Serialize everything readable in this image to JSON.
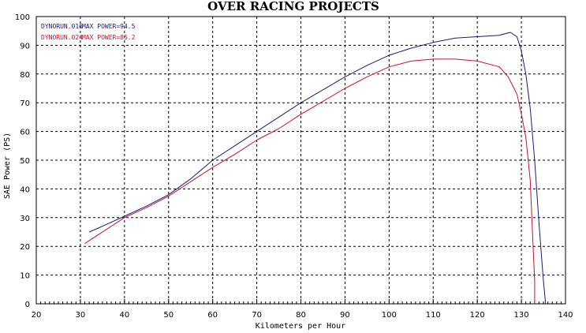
{
  "chart_data": {
    "type": "line",
    "title": "OVER RACING PROJECTS",
    "xlabel": "Kilometers per Hour",
    "ylabel": "SAE Power (PS)",
    "xlim": [
      20,
      140
    ],
    "ylim": [
      0,
      100
    ],
    "x_ticks": [
      20,
      30,
      40,
      50,
      60,
      70,
      80,
      90,
      100,
      110,
      120,
      130,
      140
    ],
    "y_ticks": [
      0,
      10,
      20,
      30,
      40,
      50,
      60,
      70,
      80,
      90,
      100
    ],
    "grid": true,
    "legend_position": "top-left",
    "series": [
      {
        "name": "DYNORUN.016",
        "annotation": "MAX POWER=94.5",
        "color": "#1a1a7a",
        "points": [
          [
            32,
            25
          ],
          [
            35,
            27
          ],
          [
            40,
            30.5
          ],
          [
            45,
            34
          ],
          [
            50,
            38
          ],
          [
            55,
            43.5
          ],
          [
            60,
            50
          ],
          [
            65,
            55
          ],
          [
            70,
            60
          ],
          [
            75,
            65
          ],
          [
            80,
            70
          ],
          [
            85,
            74.5
          ],
          [
            90,
            79
          ],
          [
            95,
            83
          ],
          [
            100,
            86.5
          ],
          [
            105,
            89
          ],
          [
            110,
            91
          ],
          [
            115,
            92.5
          ],
          [
            120,
            93
          ],
          [
            125,
            93.5
          ],
          [
            127.5,
            94.5
          ],
          [
            129,
            93
          ],
          [
            130,
            88
          ],
          [
            131,
            80
          ],
          [
            132,
            68
          ],
          [
            133,
            50
          ],
          [
            134,
            28
          ],
          [
            135,
            8
          ],
          [
            135.5,
            0
          ]
        ]
      },
      {
        "name": "DYNORUN.024",
        "annotation": "MAX POWER=85.2",
        "color": "#c8102e",
        "points": [
          [
            31,
            21
          ],
          [
            35,
            25
          ],
          [
            40,
            30
          ],
          [
            45,
            33.5
          ],
          [
            50,
            37.5
          ],
          [
            55,
            42.5
          ],
          [
            60,
            47.5
          ],
          [
            65,
            52
          ],
          [
            70,
            57
          ],
          [
            75,
            61
          ],
          [
            80,
            66
          ],
          [
            85,
            70.5
          ],
          [
            90,
            75
          ],
          [
            95,
            79
          ],
          [
            100,
            82.5
          ],
          [
            105,
            84.5
          ],
          [
            110,
            85.2
          ],
          [
            115,
            85.2
          ],
          [
            120,
            84.5
          ],
          [
            125,
            82.5
          ],
          [
            127,
            79
          ],
          [
            129,
            73
          ],
          [
            130,
            66
          ],
          [
            131,
            58
          ],
          [
            132,
            43
          ],
          [
            132.5,
            25
          ],
          [
            133,
            8
          ],
          [
            133,
            0
          ]
        ]
      }
    ]
  }
}
